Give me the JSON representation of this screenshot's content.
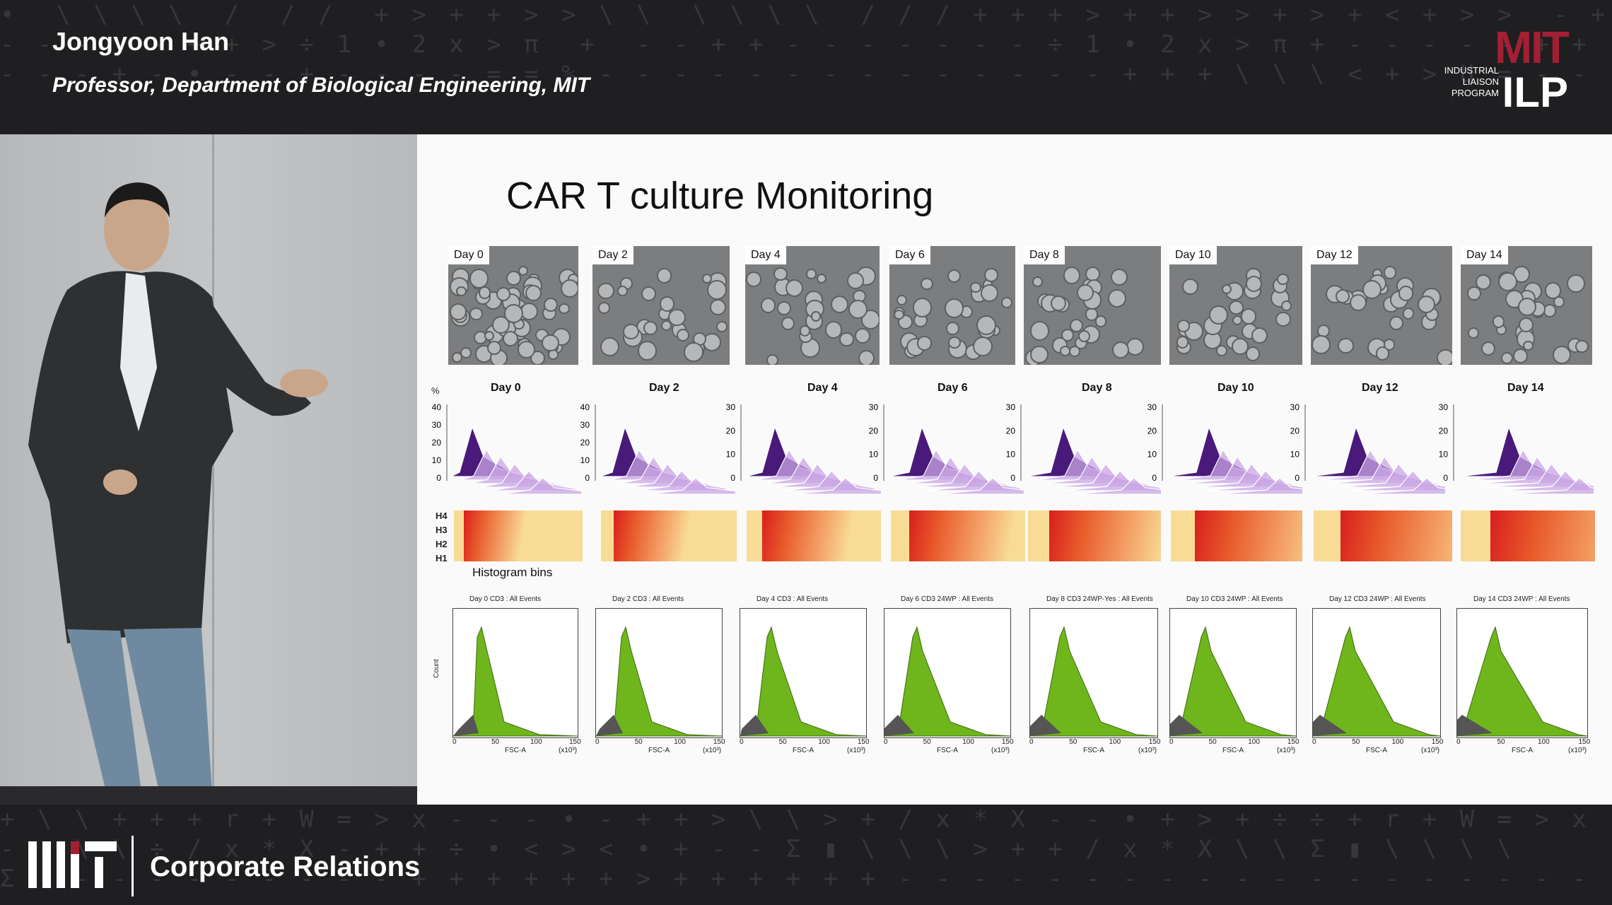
{
  "lower_third": {
    "name": "Jongyoon Han",
    "title": "Professor, Department of Biological Engineering, MIT"
  },
  "ilp_logo": {
    "mit": "MIT",
    "line1": "INDUSTRIAL",
    "line2": "LIAISON",
    "line3": "PROGRAM",
    "ilp": "ILP"
  },
  "slide": {
    "title": "CAR T culture Monitoring",
    "photo_days": [
      "Day 0",
      "Day 2",
      "Day 4",
      "Day 6",
      "Day 8",
      "Day 10",
      "Day 12",
      "Day 14"
    ],
    "histogram_days": [
      "Day 0",
      "Day 2",
      "Day 4",
      "Day 6",
      "Day 8",
      "Day 10",
      "Day 12",
      "Day 14"
    ],
    "y_unit": "%",
    "y_ticks_first_two": [
      "40",
      "30",
      "20",
      "10",
      "0"
    ],
    "y_ticks_rest": [
      "30",
      "20",
      "10",
      "0"
    ],
    "heat_labels": [
      "H4",
      "H3",
      "H2",
      "H1"
    ],
    "histogram_bins_label": "Histogram bins",
    "flow_titles": [
      "Day 0 CD3 : All Events",
      "Day 2 CD3 : All Events",
      "Day 4 CD3 : All Events",
      "Day 6 CD3 24WP : All Events",
      "Day 8 CD3 24WP-Yes : All Events",
      "Day 10 CD3 24WP : All Events",
      "Day 12 CD3 24WP : All Events",
      "Day 14 CD3 24WP : All Events"
    ],
    "flow_xlabel": "FSC-A",
    "flow_xunit": "(x10³)",
    "flow_xticks": [
      "0",
      "50",
      "100",
      "150"
    ],
    "flow_ylabel": "Count"
  },
  "footer": {
    "org": "Corporate Relations",
    "logo": "MIT"
  },
  "colors": {
    "mit_red": "#a31f34",
    "ridge_dark": "#4a1a7a",
    "ridge_light": "#c9a6e4",
    "flow_green": "#6fb51c",
    "heat_base": "#f8dc95",
    "heat_hot": "#d81e1e"
  }
}
